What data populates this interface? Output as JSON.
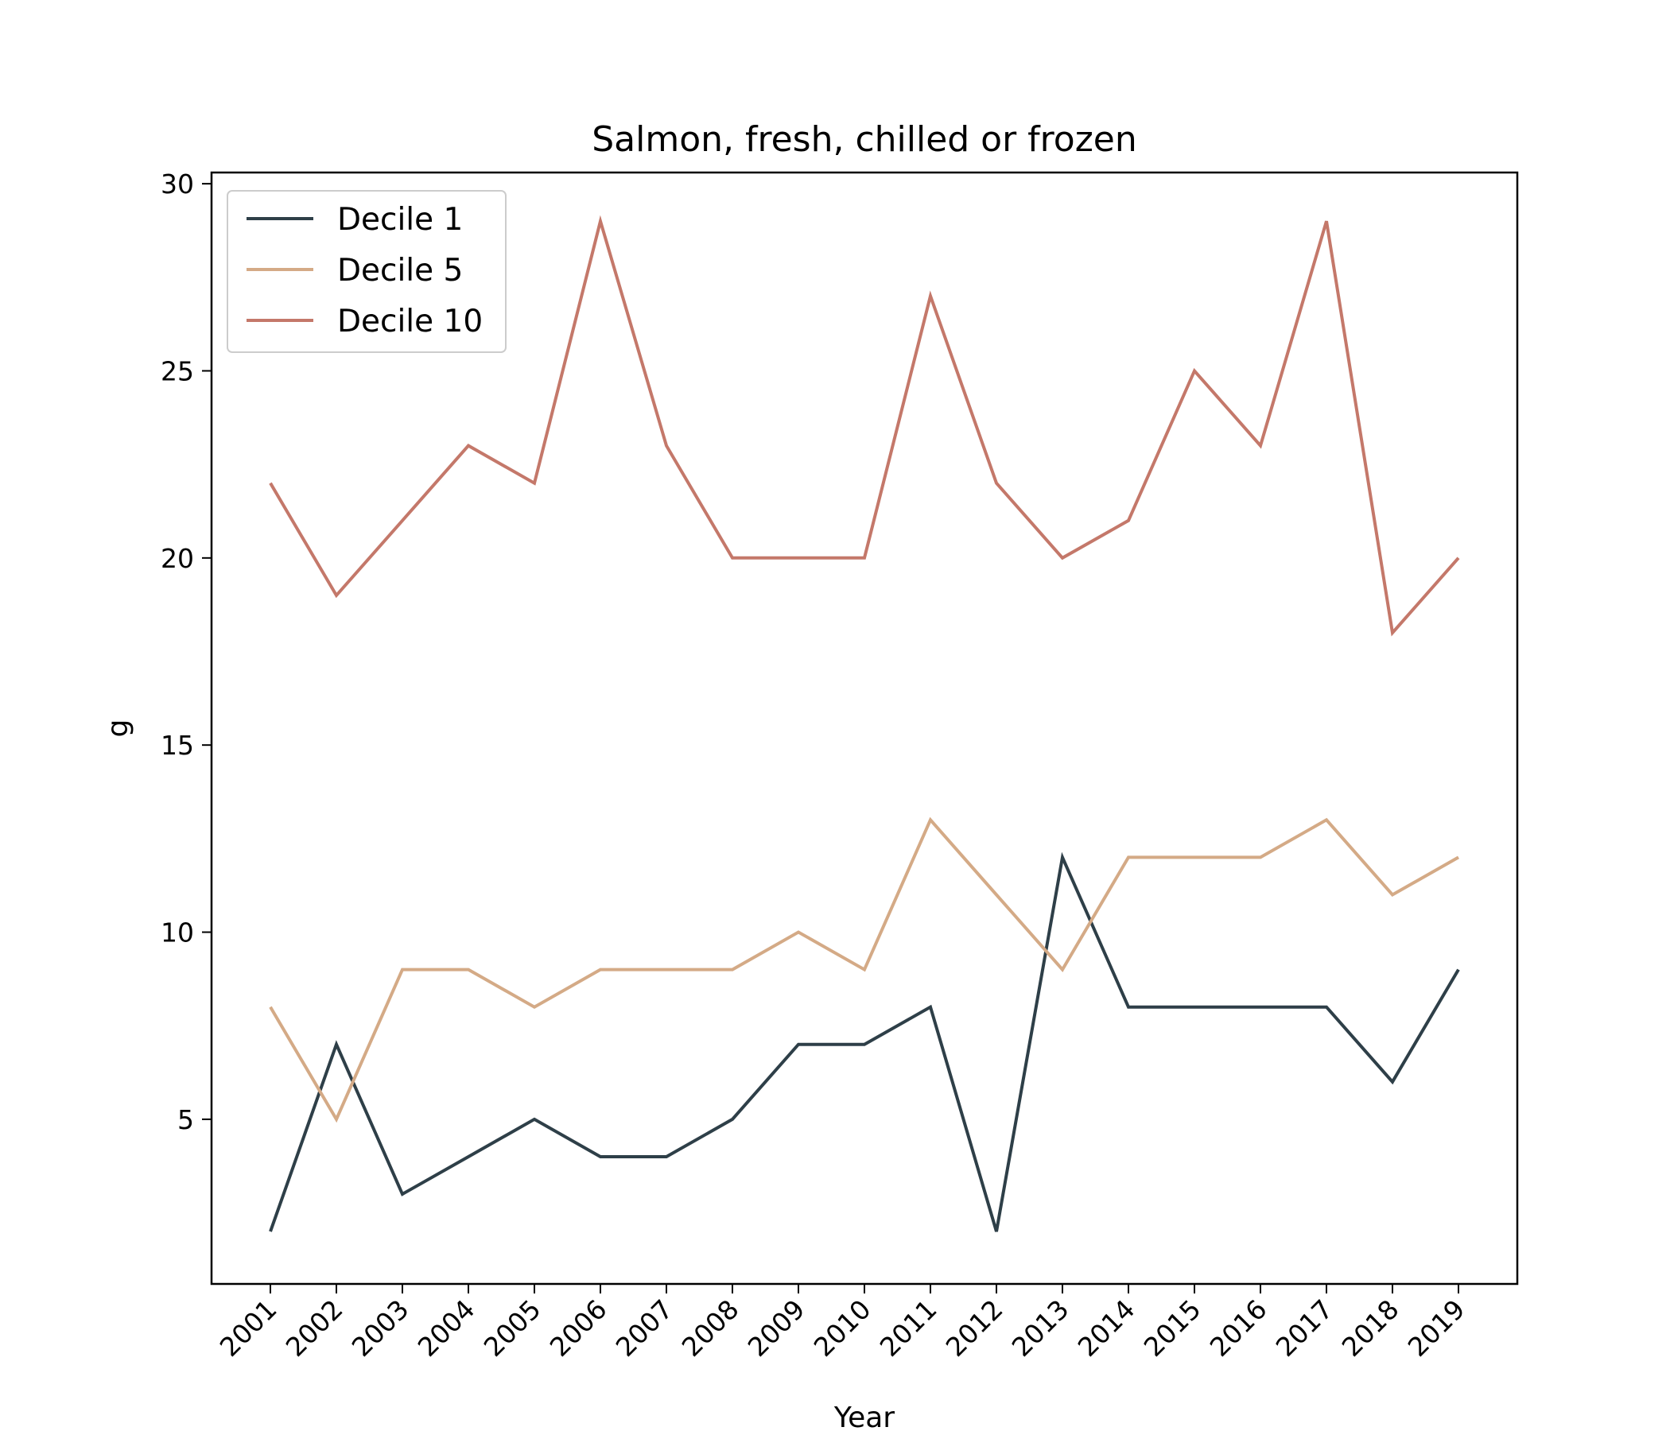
{
  "chart_data": {
    "type": "line",
    "title": "Salmon, fresh, chilled or frozen",
    "xlabel": "Year",
    "ylabel": "g",
    "x": [
      "2001",
      "2002",
      "2003",
      "2004",
      "2005",
      "2006",
      "2007",
      "2008",
      "2009",
      "2010",
      "2011",
      "2012",
      "2013",
      "2014",
      "2015",
      "2016",
      "2017",
      "2018",
      "2019"
    ],
    "ylim": [
      0.6,
      30.3
    ],
    "yticks": [
      5,
      10,
      15,
      20,
      25,
      30
    ],
    "grid": false,
    "legend_position": "top-left",
    "series": [
      {
        "name": "Decile 1",
        "color": "#2e3f48",
        "values": [
          2,
          7,
          3,
          4,
          5,
          4,
          4,
          5,
          7,
          7,
          8,
          2,
          12,
          8,
          8,
          8,
          8,
          6,
          9
        ]
      },
      {
        "name": "Decile 5",
        "color": "#d4aa86",
        "values": [
          8,
          5,
          9,
          9,
          8,
          9,
          9,
          9,
          10,
          9,
          13,
          11,
          9,
          12,
          12,
          12,
          13,
          11,
          12
        ]
      },
      {
        "name": "Decile 10",
        "color": "#c4786a",
        "values": [
          22,
          19,
          21,
          23,
          22,
          29,
          23,
          20,
          20,
          20,
          27,
          22,
          20,
          21,
          25,
          23,
          29,
          18,
          20
        ]
      }
    ]
  }
}
